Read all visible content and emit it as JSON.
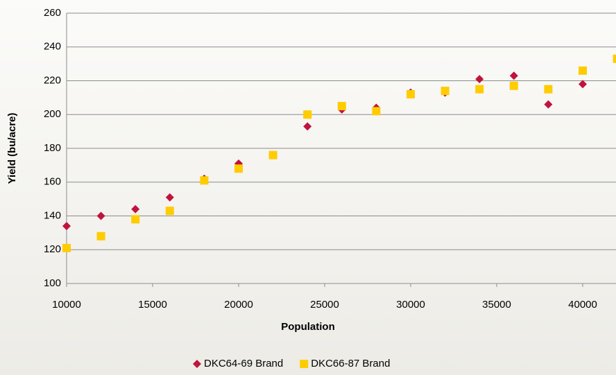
{
  "chart_data": {
    "type": "scatter",
    "x_label": "Population",
    "y_label": "Yield (bu/acre)",
    "xlim": [
      10000,
      42000
    ],
    "xticks": [
      10000,
      15000,
      20000,
      25000,
      30000,
      35000,
      40000
    ],
    "ylim": [
      100,
      260
    ],
    "yticks": [
      100,
      120,
      140,
      160,
      180,
      200,
      220,
      240,
      260
    ],
    "grid": true,
    "legend": "bottom",
    "series": [
      {
        "name": "DKC64-69 Brand",
        "color": "#c0143c",
        "marker": "diamond",
        "x": [
          10000,
          12000,
          14000,
          16000,
          18000,
          20000,
          22000,
          24000,
          26000,
          28000,
          30000,
          32000,
          34000,
          36000,
          38000,
          40000
        ],
        "values": [
          134,
          140,
          144,
          151,
          162,
          171,
          176,
          193,
          203,
          204,
          213,
          213,
          221,
          223,
          206,
          218
        ]
      },
      {
        "name": "DKC66-87 Brand",
        "color": "#ffcc00",
        "marker": "square",
        "x": [
          10000,
          12000,
          14000,
          16000,
          18000,
          20000,
          22000,
          24000,
          26000,
          28000,
          30000,
          32000,
          34000,
          36000,
          38000,
          40000,
          42000
        ],
        "values": [
          121,
          128,
          138,
          143,
          161,
          168,
          176,
          200,
          205,
          202,
          212,
          214,
          215,
          217,
          215,
          226,
          233
        ]
      }
    ]
  }
}
